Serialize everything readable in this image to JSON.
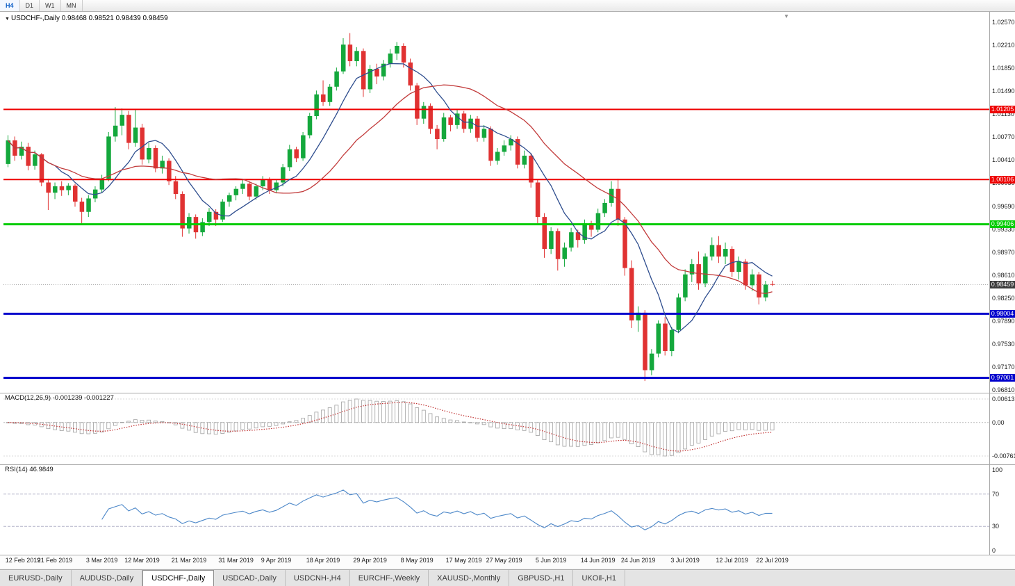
{
  "icons": {
    "dropdown": "▼",
    "shift_marker": "▼"
  },
  "toolbar": {
    "buttons": [
      {
        "label": "H4",
        "active": true
      },
      {
        "label": "D1",
        "active": false
      },
      {
        "label": "W1",
        "active": false
      },
      {
        "label": "MN",
        "active": false
      }
    ]
  },
  "chart_data": {
    "type": "candlestick",
    "symbol": "USDCHF",
    "timeframe": "Daily",
    "title_symbol": "USDCHF-,Daily",
    "ohlc_text": "0.98468 0.98521 0.98439 0.98459",
    "current_ohlc": {
      "open": 0.98468,
      "high": 0.98521,
      "low": 0.98439,
      "close": 0.98459
    },
    "ylim": [
      0.9681,
      1.0257
    ],
    "price_scale": [
      "1.02570",
      "1.02210",
      "1.01850",
      "1.01490",
      "1.01130",
      "1.00770",
      "1.00410",
      "1.00050",
      "0.99690",
      "0.99330",
      "0.98970",
      "0.98610",
      "0.98250",
      "0.97890",
      "0.97530",
      "0.97170",
      "0.96810"
    ],
    "levels": [
      {
        "label": "1.01205",
        "value": 1.01205,
        "color": "#ee0000",
        "width": 2
      },
      {
        "label": "1.00106",
        "value": 1.00106,
        "color": "#ee0000",
        "width": 2
      },
      {
        "label": "0.99406",
        "value": 0.99406,
        "color": "#00cc00",
        "width": 3
      },
      {
        "label": "0.98004",
        "value": 0.98004,
        "color": "#0000cc",
        "width": 3
      },
      {
        "label": "0.97001",
        "value": 0.97001,
        "color": "#0000cc",
        "width": 3
      }
    ],
    "current_price": {
      "label": "0.98459",
      "value": 0.98459,
      "badge_color": "#3c3c3c",
      "line_color": "#aaaaaa"
    },
    "x_labels": [
      {
        "text": "12 Feb 2019",
        "i": 0
      },
      {
        "text": "21 Feb 2019",
        "i": 7
      },
      {
        "text": "3 Mar 2019",
        "i": 14
      },
      {
        "text": "12 Mar 2019",
        "i": 20
      },
      {
        "text": "21 Mar 2019",
        "i": 27
      },
      {
        "text": "31 Mar 2019",
        "i": 34
      },
      {
        "text": "9 Apr 2019",
        "i": 40
      },
      {
        "text": "18 Apr 2019",
        "i": 47
      },
      {
        "text": "29 Apr 2019",
        "i": 54
      },
      {
        "text": "8 May 2019",
        "i": 61
      },
      {
        "text": "17 May 2019",
        "i": 68
      },
      {
        "text": "27 May 2019",
        "i": 74
      },
      {
        "text": "5 Jun 2019",
        "i": 81
      },
      {
        "text": "14 Jun 2019",
        "i": 88
      },
      {
        "text": "24 Jun 2019",
        "i": 94
      },
      {
        "text": "3 Jul 2019",
        "i": 101
      },
      {
        "text": "12 Jul 2019",
        "i": 108
      },
      {
        "text": "22 Jul 2019",
        "i": 114
      }
    ],
    "candles": [
      [
        1.0035,
        1.008,
        1.003,
        1.0072
      ],
      [
        1.0072,
        1.0078,
        1.004,
        1.0048
      ],
      [
        1.0048,
        1.007,
        1.0042,
        1.0062
      ],
      [
        1.0062,
        1.0068,
        1.0025,
        1.0032
      ],
      [
        1.0032,
        1.0056,
        1.0026,
        1.005
      ],
      [
        1.005,
        1.0052,
        1.0,
        1.0006
      ],
      [
        1.0006,
        1.0012,
        0.9963,
        0.999
      ],
      [
        0.999,
        1.0006,
        0.998,
        1.0
      ],
      [
        1.0,
        1.0008,
        0.9985,
        0.9994
      ],
      [
        0.9994,
        1.0005,
        0.9986,
        1.0001
      ],
      [
        1.0001,
        1.0004,
        0.9968,
        0.9976
      ],
      [
        0.9976,
        0.9982,
        0.9942,
        0.996
      ],
      [
        0.996,
        0.9986,
        0.9952,
        0.9981
      ],
      [
        0.9981,
        1.0,
        0.9975,
        0.9995
      ],
      [
        0.9995,
        1.0018,
        0.999,
        1.0012
      ],
      [
        1.0012,
        1.0085,
        1.0008,
        1.0078
      ],
      [
        1.0078,
        1.0124,
        1.007,
        1.0095
      ],
      [
        1.0095,
        1.0122,
        1.008,
        1.0112
      ],
      [
        1.0112,
        1.0118,
        1.0058,
        1.0068
      ],
      [
        1.0068,
        1.012,
        1.0062,
        1.0092
      ],
      [
        1.0092,
        1.0098,
        1.0034,
        1.0042
      ],
      [
        1.0042,
        1.0068,
        1.0036,
        1.006
      ],
      [
        1.006,
        1.0064,
        1.0022,
        1.0028
      ],
      [
        1.0028,
        1.0048,
        1.002,
        1.004
      ],
      [
        1.004,
        1.0044,
        1.0002,
        1.0008
      ],
      [
        1.0008,
        1.0016,
        0.998,
        0.9988
      ],
      [
        0.9988,
        0.9992,
        0.9921,
        0.9934
      ],
      [
        0.9934,
        0.9958,
        0.9926,
        0.9952
      ],
      [
        0.9952,
        0.9956,
        0.9918,
        0.9928
      ],
      [
        0.9928,
        0.995,
        0.9922,
        0.9944
      ],
      [
        0.9944,
        0.9966,
        0.9938,
        0.996
      ],
      [
        0.996,
        0.9964,
        0.9938,
        0.9948
      ],
      [
        0.9948,
        0.998,
        0.9944,
        0.9976
      ],
      [
        0.9976,
        0.999,
        0.9968,
        0.9986
      ],
      [
        0.9986,
        1.0,
        0.9978,
        0.9996
      ],
      [
        0.9996,
        1.001,
        0.9988,
        1.0004
      ],
      [
        1.0004,
        1.0008,
        0.9978,
        0.9984
      ],
      [
        0.9984,
        1.0004,
        0.9979,
        1.0
      ],
      [
        1.0,
        1.0016,
        0.9994,
        1.001
      ],
      [
        1.001,
        1.0014,
        0.9988,
        0.9994
      ],
      [
        0.9994,
        1.0011,
        0.9989,
        1.0006
      ],
      [
        1.0006,
        1.0035,
        1.0,
        1.003
      ],
      [
        1.003,
        1.0065,
        1.0024,
        1.0058
      ],
      [
        1.0058,
        1.0062,
        1.0038,
        1.0044
      ],
      [
        1.0044,
        1.0085,
        1.004,
        1.008
      ],
      [
        1.008,
        1.0115,
        1.0075,
        1.011
      ],
      [
        1.011,
        1.015,
        1.0105,
        1.0144
      ],
      [
        1.0144,
        1.0166,
        1.0126,
        1.0132
      ],
      [
        1.0132,
        1.016,
        1.0126,
        1.0156
      ],
      [
        1.0156,
        1.0186,
        1.015,
        1.018
      ],
      [
        1.018,
        1.0232,
        1.0176,
        1.0222
      ],
      [
        1.0222,
        1.024,
        1.0188,
        1.0196
      ],
      [
        1.0196,
        1.0218,
        1.0188,
        1.0212
      ],
      [
        1.0212,
        1.0216,
        1.014,
        1.0152
      ],
      [
        1.0152,
        1.019,
        1.0146,
        1.0184
      ],
      [
        1.0184,
        1.0192,
        1.016,
        1.0172
      ],
      [
        1.0172,
        1.0198,
        1.0166,
        1.0192
      ],
      [
        1.0192,
        1.0215,
        1.0186,
        1.0208
      ],
      [
        1.0208,
        1.0226,
        1.0198,
        1.022
      ],
      [
        1.022,
        1.0224,
        1.0186,
        1.0194
      ],
      [
        1.0194,
        1.02,
        1.015,
        1.0158
      ],
      [
        1.0158,
        1.0162,
        1.0096,
        1.0106
      ],
      [
        1.0106,
        1.0132,
        1.0098,
        1.0126
      ],
      [
        1.0126,
        1.013,
        1.0082,
        1.009
      ],
      [
        1.009,
        1.0096,
        1.0058,
        1.0074
      ],
      [
        1.0074,
        1.0115,
        1.007,
        1.0108
      ],
      [
        1.0108,
        1.0112,
        1.0086,
        1.0096
      ],
      [
        1.0096,
        1.012,
        1.009,
        1.0114
      ],
      [
        1.0114,
        1.0118,
        1.0084,
        1.009
      ],
      [
        1.009,
        1.0112,
        1.0084,
        1.0106
      ],
      [
        1.0106,
        1.011,
        1.007,
        1.0076
      ],
      [
        1.0076,
        1.0096,
        1.007,
        1.009
      ],
      [
        1.009,
        1.0094,
        1.0032,
        1.004
      ],
      [
        1.004,
        1.006,
        1.0034,
        1.0054
      ],
      [
        1.0054,
        1.0072,
        1.0048,
        1.0064
      ],
      [
        1.0064,
        1.008,
        1.0056,
        1.0074
      ],
      [
        1.0074,
        1.0078,
        1.0028,
        1.0034
      ],
      [
        1.0034,
        1.0056,
        1.0028,
        1.0048
      ],
      [
        1.0048,
        1.0052,
        0.9998,
        1.0006
      ],
      [
        1.0006,
        1.001,
        0.9942,
        0.9952
      ],
      [
        0.9952,
        0.9958,
        0.9888,
        0.9902
      ],
      [
        0.9902,
        0.9936,
        0.9894,
        0.993
      ],
      [
        0.993,
        0.9934,
        0.9868,
        0.9886
      ],
      [
        0.9886,
        0.9912,
        0.9874,
        0.9904
      ],
      [
        0.9904,
        0.9935,
        0.9898,
        0.9928
      ],
      [
        0.9928,
        0.9932,
        0.9904,
        0.9916
      ],
      [
        0.9916,
        0.9948,
        0.991,
        0.9942
      ],
      [
        0.9942,
        0.9946,
        0.9921,
        0.9932
      ],
      [
        0.9932,
        0.9965,
        0.9928,
        0.9958
      ],
      [
        0.9958,
        0.998,
        0.9952,
        0.9974
      ],
      [
        0.9974,
        1.0008,
        0.9968,
        0.9996
      ],
      [
        0.9996,
        1.0012,
        0.9938,
        0.9948
      ],
      [
        0.9948,
        0.9952,
        0.986,
        0.9872
      ],
      [
        0.9872,
        0.9884,
        0.9778,
        0.979
      ],
      [
        0.979,
        0.9812,
        0.9772,
        0.9802
      ],
      [
        0.9802,
        0.9806,
        0.9695,
        0.9712
      ],
      [
        0.9712,
        0.9745,
        0.9704,
        0.9738
      ],
      [
        0.9738,
        0.979,
        0.9732,
        0.9785
      ],
      [
        0.9785,
        0.9795,
        0.9735,
        0.9742
      ],
      [
        0.9742,
        0.978,
        0.9734,
        0.9775
      ],
      [
        0.9775,
        0.9832,
        0.977,
        0.9826
      ],
      [
        0.9826,
        0.987,
        0.982,
        0.9862
      ],
      [
        0.9862,
        0.9886,
        0.985,
        0.9878
      ],
      [
        0.9878,
        0.9898,
        0.9838,
        0.9848
      ],
      [
        0.9848,
        0.9895,
        0.9842,
        0.989
      ],
      [
        0.989,
        0.992,
        0.9884,
        0.9908
      ],
      [
        0.9908,
        0.9922,
        0.988,
        0.989
      ],
      [
        0.989,
        0.9912,
        0.9878,
        0.9902
      ],
      [
        0.9902,
        0.9906,
        0.9858,
        0.9866
      ],
      [
        0.9866,
        0.989,
        0.9854,
        0.9882
      ],
      [
        0.9882,
        0.9886,
        0.9838,
        0.9845
      ],
      [
        0.9845,
        0.987,
        0.9836,
        0.9862
      ],
      [
        0.9862,
        0.9866,
        0.9815,
        0.9826
      ],
      [
        0.9826,
        0.9852,
        0.982,
        0.9846
      ],
      [
        0.98468,
        0.98521,
        0.98439,
        0.98459
      ]
    ],
    "indicators": {
      "ma_fast": {
        "type": "sma",
        "period": 8,
        "color": "#2e4d8e"
      },
      "ma_slow": {
        "type": "sma",
        "period": 21,
        "color": "#c23b3b"
      },
      "macd": {
        "label_text": "MACD(12,26,9) -0.001239 -0.001227",
        "fast": 12,
        "slow": 26,
        "signal": 9,
        "axis_labels": [
          "0.00613",
          "0.00",
          "-0.00761"
        ],
        "histogram_color": "#a0a0a0",
        "signal_color": "#c03030"
      },
      "rsi": {
        "label_text": "RSI(14) 46.9849",
        "period": 14,
        "value": 46.9849,
        "axis_labels": [
          "100",
          "70",
          "30",
          "0"
        ],
        "levels": [
          70,
          30
        ],
        "color": "#4a86c8"
      }
    },
    "colors": {
      "up": "#14a83c",
      "down": "#e03232",
      "background": "#ffffff"
    }
  },
  "tabs": [
    {
      "label": "EURUSD-,Daily",
      "active": false
    },
    {
      "label": "AUDUSD-,Daily",
      "active": false
    },
    {
      "label": "USDCHF-,Daily",
      "active": true
    },
    {
      "label": "USDCAD-,Daily",
      "active": false
    },
    {
      "label": "USDCNH-,H4",
      "active": false
    },
    {
      "label": "EURCHF-,Weekly",
      "active": false
    },
    {
      "label": "XAUUSD-,Monthly",
      "active": false
    },
    {
      "label": "GBPUSD-,H1",
      "active": false
    },
    {
      "label": "UKOil-,H1",
      "active": false
    }
  ]
}
